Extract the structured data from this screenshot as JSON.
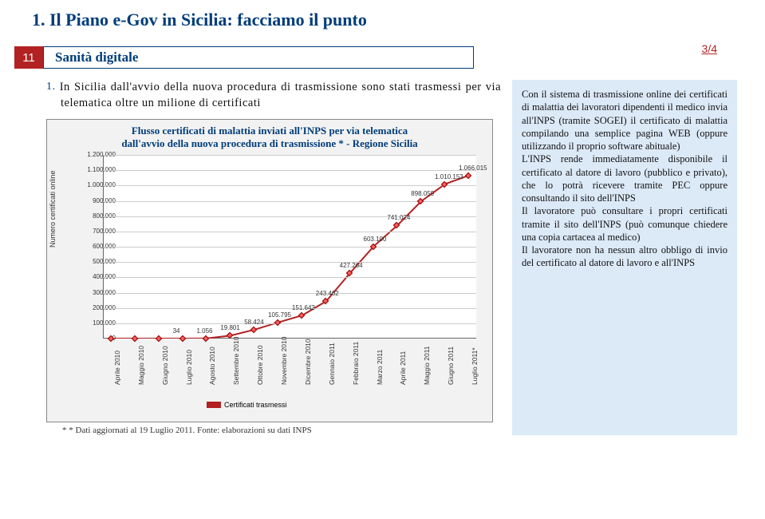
{
  "page_title": "1. Il Piano e-Gov in Sicilia: facciamo il punto",
  "page_number": "11",
  "section_label": "Sanità digitale",
  "fraction": "3/4",
  "intro_number": "1.",
  "intro_body": "In Sicilia dall'avvio della nuova procedura di trasmissione sono stati trasmessi per via telematica oltre un milione di certificati",
  "chart": {
    "type": "line",
    "title_line1": "Flusso certificati di malattia inviati all'INPS per via telematica",
    "title_line2": "dall'avvio della nuova procedura di trasmissione * - Regione Sicilia",
    "y_axis_label": "Numero certificati online",
    "ylim": [
      0,
      1200000
    ],
    "y_ticks": [
      "0",
      "100.000",
      "200.000",
      "300.000",
      "400.000",
      "500.000",
      "600.000",
      "700.000",
      "800.000",
      "900.000",
      "1.000.000",
      "1.100.000",
      "1.200.000"
    ],
    "x_labels": [
      "Aprile 2010",
      "Maggio 2010",
      "Giugno 2010",
      "Luglio 2010",
      "Agosto 2010",
      "Settembre 2010",
      "Ottobre 2010",
      "Novembre 2010",
      "Dicembre 2010",
      "Gennaio 2011",
      "Febbraio 2011",
      "Marzo 2011",
      "Aprile 2011",
      "Maggio 2011",
      "Giugno 2011",
      "Luglio 2011*"
    ],
    "data_labels": [
      "",
      "",
      "",
      "34",
      "1.056",
      "19.801",
      "58.424",
      "105.795",
      "151.642",
      "243.462",
      "427.264",
      "603.100",
      "741.024",
      "898.059",
      "1.010.153",
      "1.066.015"
    ],
    "values": [
      0,
      0,
      0,
      34,
      1056,
      19801,
      58424,
      105795,
      151642,
      243462,
      427264,
      603100,
      741024,
      898059,
      1010153,
      1066015
    ],
    "line_color": "#b22222",
    "marker_fill": "#ff5c5c",
    "marker_border": "#8b0000",
    "background": "#f2f2f2",
    "grid_color": "#cccccc",
    "legend_label": "Certificati trasmessi"
  },
  "footnote": "* * Dati aggiornati al 19 Luglio 2011. Fonte: elaborazioni su dati INPS",
  "side_panel": {
    "background_color": "#dce9f7",
    "text": "Con il sistema di trasmissione online dei certificati di malattia dei lavoratori dipendenti il medico invia all'INPS (tramite SOGEI) il certificato di malattia compilando una semplice pagina WEB (oppure utilizzando il proprio software abituale)\nL'INPS rende immediatamente disponibile il certificato al datore di lavoro (pubblico e privato), che lo potrà ricevere tramite PEC oppure consultando il sito dell'INPS\nIl lavoratore può consultare i propri certificati tramite il sito dell'INPS (può comunque chiedere una copia cartacea al medico)\nIl lavoratore non ha nessun altro obbligo di invio del certificato al datore di lavoro e all'INPS"
  }
}
